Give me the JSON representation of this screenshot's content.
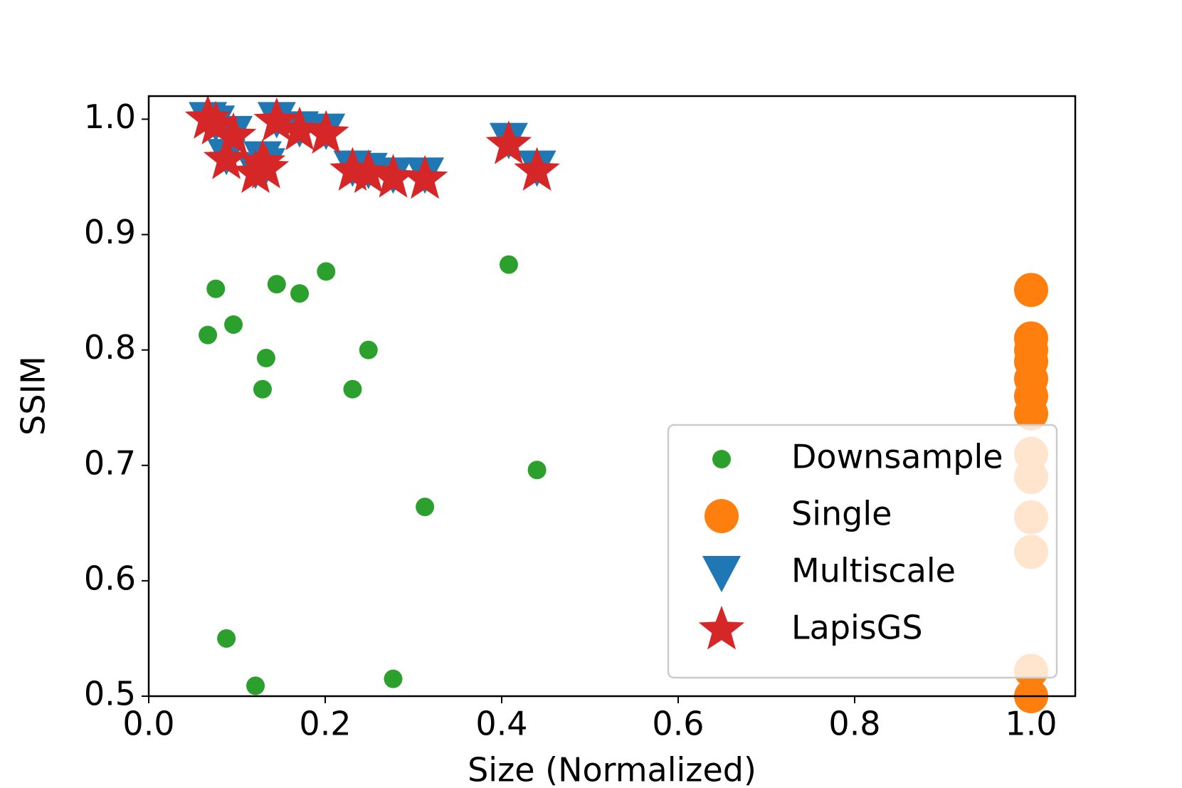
{
  "chart_data": {
    "type": "scatter",
    "xlabel": "Size (Normalized)",
    "ylabel": "SSIM",
    "xlim": [
      0,
      1.05
    ],
    "ylim": [
      0.5,
      1.02
    ],
    "xticks": [
      {
        "value": 0,
        "label": "0.0"
      },
      {
        "value": 0.2,
        "label": "0.2"
      },
      {
        "value": 0.4,
        "label": "0.4"
      },
      {
        "value": 0.6,
        "label": "0.6"
      },
      {
        "value": 0.8,
        "label": "0.8"
      },
      {
        "value": 1,
        "label": "1.0"
      }
    ],
    "yticks": [
      {
        "value": 0.5,
        "label": "0.5"
      },
      0.6,
      0.7,
      0.8,
      0.9,
      {
        "value": 1,
        "label": "1.0"
      }
    ],
    "legend": "lower right",
    "series": [
      {
        "name": "Downsample",
        "color": "#2ca02c",
        "marker": "o",
        "x": [
          0.067,
          0.076,
          0.096,
          0.088,
          0.121,
          0.129,
          0.133,
          0.145,
          0.171,
          0.201,
          0.231,
          0.249,
          0.277,
          0.313,
          0.408,
          0.44
        ],
        "values": [
          0.813,
          0.853,
          0.822,
          0.55,
          0.509,
          0.766,
          0.793,
          0.857,
          0.849,
          0.868,
          0.766,
          0.8,
          0.515,
          0.664,
          0.874,
          0.696
        ]
      },
      {
        "name": "Single",
        "color": "#ff7f0e",
        "marker": "O",
        "x": [
          1,
          1,
          1,
          1,
          1,
          1,
          1,
          1,
          1,
          1,
          1,
          1,
          1
        ],
        "values": [
          0.852,
          0.81,
          0.8,
          0.79,
          0.775,
          0.76,
          0.745,
          0.71,
          0.69,
          0.655,
          0.625,
          0.522,
          0.5
        ]
      },
      {
        "name": "Multiscale",
        "color": "#1f77b4",
        "marker": "v",
        "x": [
          0.067,
          0.076,
          0.088,
          0.096,
          0.121,
          0.129,
          0.133,
          0.145,
          0.171,
          0.201,
          0.231,
          0.249,
          0.277,
          0.313,
          0.408,
          0.44
        ],
        "values": [
          1,
          0.997,
          0.968,
          0.988,
          0.956,
          0.966,
          0.96,
          1,
          0.992,
          0.99,
          0.958,
          0.956,
          0.952,
          0.952,
          0.982,
          0.958
        ]
      },
      {
        "name": "LapisGS",
        "color": "#d62728",
        "marker": "*",
        "x": [
          0.067,
          0.076,
          0.088,
          0.096,
          0.121,
          0.129,
          0.133,
          0.145,
          0.171,
          0.201,
          0.231,
          0.249,
          0.277,
          0.313,
          0.408,
          0.44
        ],
        "values": [
          1,
          0.995,
          0.965,
          0.985,
          0.953,
          0.962,
          0.957,
          0.998,
          0.99,
          0.987,
          0.955,
          0.953,
          0.949,
          0.948,
          0.978,
          0.955
        ]
      }
    ]
  }
}
